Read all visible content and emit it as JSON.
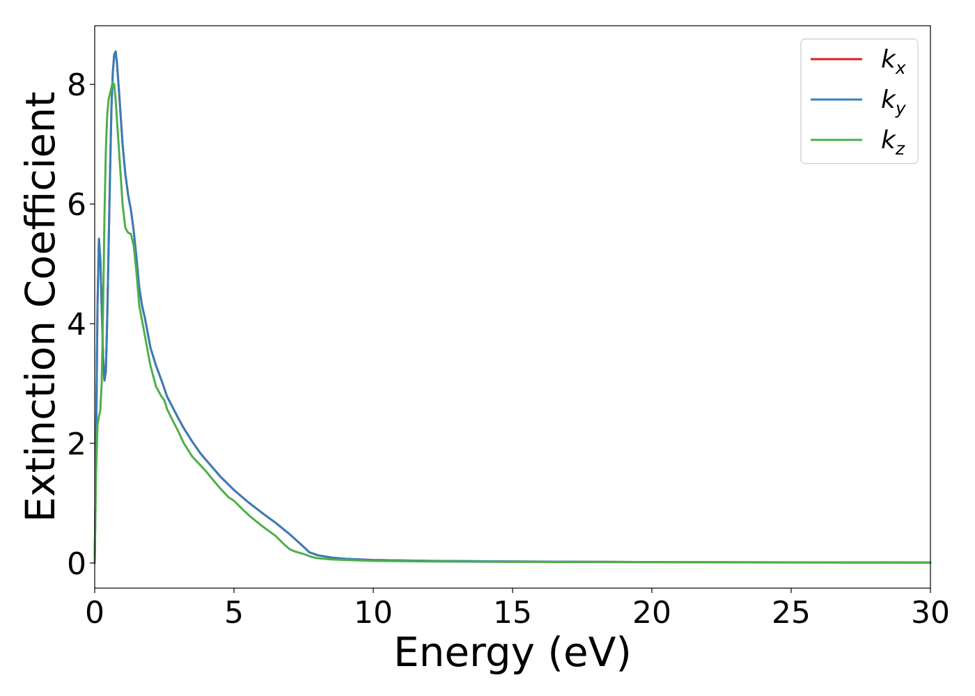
{
  "chart_data": {
    "type": "line",
    "title": "",
    "xlabel": "Energy (eV)",
    "ylabel": "Extinction Coefficient",
    "xlim": [
      0,
      30
    ],
    "ylim": [
      -0.42,
      8.98
    ],
    "x_ticks": [
      0,
      5,
      10,
      15,
      20,
      25,
      30
    ],
    "y_ticks": [
      0,
      2,
      4,
      6,
      8
    ],
    "x_tick_labels": [
      "0",
      "5",
      "10",
      "15",
      "20",
      "25",
      "30"
    ],
    "y_tick_labels": [
      "0",
      "2",
      "4",
      "6",
      "8"
    ],
    "grid": false,
    "legend_position": "top-right",
    "series": [
      {
        "name": "k_x",
        "legend_base": "k",
        "legend_sub": "x",
        "color": "#e41a1c",
        "points": [
          [
            0,
            0
          ],
          [
            0.05,
            2.0
          ],
          [
            0.1,
            4.3
          ],
          [
            0.15,
            5.42
          ],
          [
            0.2,
            5.1
          ],
          [
            0.25,
            4.3
          ],
          [
            0.3,
            3.45
          ],
          [
            0.35,
            3.05
          ],
          [
            0.4,
            3.2
          ],
          [
            0.45,
            4.1
          ],
          [
            0.5,
            5.3
          ],
          [
            0.55,
            6.5
          ],
          [
            0.6,
            7.6
          ],
          [
            0.65,
            8.2
          ],
          [
            0.7,
            8.5
          ],
          [
            0.75,
            8.55
          ],
          [
            0.8,
            8.35
          ],
          [
            0.9,
            7.7
          ],
          [
            1.0,
            7.0
          ],
          [
            1.1,
            6.5
          ],
          [
            1.2,
            6.15
          ],
          [
            1.3,
            5.9
          ],
          [
            1.4,
            5.55
          ],
          [
            1.5,
            5.1
          ],
          [
            1.6,
            4.6
          ],
          [
            1.7,
            4.3
          ],
          [
            1.8,
            4.1
          ],
          [
            2.0,
            3.6
          ],
          [
            2.2,
            3.3
          ],
          [
            2.4,
            3.05
          ],
          [
            2.6,
            2.78
          ],
          [
            2.8,
            2.6
          ],
          [
            3.0,
            2.42
          ],
          [
            3.2,
            2.25
          ],
          [
            3.5,
            2.03
          ],
          [
            3.8,
            1.83
          ],
          [
            4.0,
            1.72
          ],
          [
            4.5,
            1.45
          ],
          [
            5.0,
            1.22
          ],
          [
            5.5,
            1.02
          ],
          [
            6.0,
            0.84
          ],
          [
            6.5,
            0.67
          ],
          [
            7.0,
            0.48
          ],
          [
            7.5,
            0.27
          ],
          [
            7.7,
            0.18
          ],
          [
            8.0,
            0.13
          ],
          [
            8.5,
            0.09
          ],
          [
            9.0,
            0.07
          ],
          [
            10,
            0.05
          ],
          [
            12,
            0.035
          ],
          [
            15,
            0.025
          ],
          [
            20,
            0.015
          ],
          [
            25,
            0.01
          ],
          [
            30,
            0.008
          ]
        ]
      },
      {
        "name": "k_y",
        "legend_base": "k",
        "legend_sub": "y",
        "color": "#377eb8",
        "points": [
          [
            0,
            0
          ],
          [
            0.05,
            2.0
          ],
          [
            0.1,
            4.3
          ],
          [
            0.15,
            5.42
          ],
          [
            0.2,
            5.1
          ],
          [
            0.25,
            4.3
          ],
          [
            0.3,
            3.45
          ],
          [
            0.35,
            3.05
          ],
          [
            0.4,
            3.2
          ],
          [
            0.45,
            4.1
          ],
          [
            0.5,
            5.3
          ],
          [
            0.55,
            6.5
          ],
          [
            0.6,
            7.6
          ],
          [
            0.65,
            8.2
          ],
          [
            0.7,
            8.5
          ],
          [
            0.75,
            8.55
          ],
          [
            0.8,
            8.35
          ],
          [
            0.9,
            7.7
          ],
          [
            1.0,
            7.0
          ],
          [
            1.1,
            6.5
          ],
          [
            1.2,
            6.15
          ],
          [
            1.3,
            5.9
          ],
          [
            1.4,
            5.55
          ],
          [
            1.5,
            5.1
          ],
          [
            1.6,
            4.6
          ],
          [
            1.7,
            4.3
          ],
          [
            1.8,
            4.1
          ],
          [
            2.0,
            3.6
          ],
          [
            2.2,
            3.3
          ],
          [
            2.4,
            3.05
          ],
          [
            2.6,
            2.78
          ],
          [
            2.8,
            2.6
          ],
          [
            3.0,
            2.42
          ],
          [
            3.2,
            2.25
          ],
          [
            3.5,
            2.03
          ],
          [
            3.8,
            1.83
          ],
          [
            4.0,
            1.72
          ],
          [
            4.5,
            1.45
          ],
          [
            5.0,
            1.22
          ],
          [
            5.5,
            1.02
          ],
          [
            6.0,
            0.84
          ],
          [
            6.5,
            0.67
          ],
          [
            7.0,
            0.48
          ],
          [
            7.5,
            0.27
          ],
          [
            7.7,
            0.18
          ],
          [
            8.0,
            0.13
          ],
          [
            8.5,
            0.09
          ],
          [
            9.0,
            0.07
          ],
          [
            10,
            0.05
          ],
          [
            12,
            0.035
          ],
          [
            15,
            0.025
          ],
          [
            20,
            0.015
          ],
          [
            25,
            0.01
          ],
          [
            30,
            0.008
          ]
        ]
      },
      {
        "name": "k_z",
        "legend_base": "k",
        "legend_sub": "z",
        "color": "#4daf4a",
        "points": [
          [
            0,
            0
          ],
          [
            0.05,
            1.5
          ],
          [
            0.1,
            2.3
          ],
          [
            0.15,
            2.45
          ],
          [
            0.2,
            2.55
          ],
          [
            0.25,
            3.0
          ],
          [
            0.3,
            4.2
          ],
          [
            0.35,
            5.8
          ],
          [
            0.4,
            6.9
          ],
          [
            0.45,
            7.5
          ],
          [
            0.5,
            7.75
          ],
          [
            0.55,
            7.85
          ],
          [
            0.6,
            7.95
          ],
          [
            0.65,
            8.03
          ],
          [
            0.7,
            8.0
          ],
          [
            0.75,
            7.75
          ],
          [
            0.8,
            7.4
          ],
          [
            0.9,
            6.7
          ],
          [
            1.0,
            6.0
          ],
          [
            1.1,
            5.6
          ],
          [
            1.2,
            5.52
          ],
          [
            1.3,
            5.5
          ],
          [
            1.4,
            5.3
          ],
          [
            1.5,
            4.85
          ],
          [
            1.6,
            4.3
          ],
          [
            1.8,
            3.8
          ],
          [
            2.0,
            3.3
          ],
          [
            2.2,
            2.95
          ],
          [
            2.4,
            2.78
          ],
          [
            2.5,
            2.72
          ],
          [
            2.6,
            2.57
          ],
          [
            2.8,
            2.38
          ],
          [
            3.0,
            2.2
          ],
          [
            3.2,
            2.0
          ],
          [
            3.5,
            1.78
          ],
          [
            3.8,
            1.63
          ],
          [
            4.0,
            1.53
          ],
          [
            4.3,
            1.36
          ],
          [
            4.5,
            1.25
          ],
          [
            4.8,
            1.1
          ],
          [
            5.0,
            1.04
          ],
          [
            5.3,
            0.9
          ],
          [
            5.6,
            0.77
          ],
          [
            6.0,
            0.62
          ],
          [
            6.5,
            0.45
          ],
          [
            6.8,
            0.31
          ],
          [
            7.0,
            0.23
          ],
          [
            7.2,
            0.19
          ],
          [
            7.5,
            0.15
          ],
          [
            7.8,
            0.1
          ],
          [
            8.0,
            0.08
          ],
          [
            8.5,
            0.06
          ],
          [
            9.0,
            0.05
          ],
          [
            10,
            0.035
          ],
          [
            12,
            0.025
          ],
          [
            15,
            0.018
          ],
          [
            20,
            0.012
          ],
          [
            25,
            0.008
          ],
          [
            30,
            0.006
          ]
        ]
      }
    ]
  }
}
